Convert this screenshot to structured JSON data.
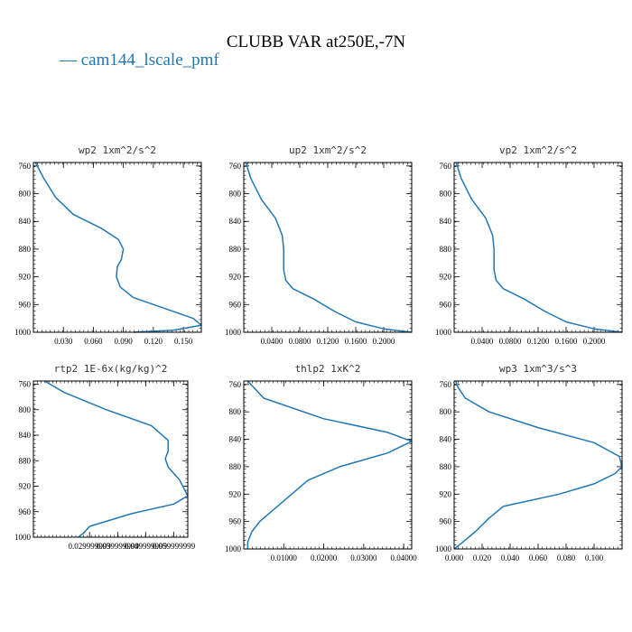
{
  "figure": {
    "title": "CLUBB VAR at250E,-7N",
    "legend": [
      {
        "label": "cam144_lscale_pmf",
        "color": "#1f77b4",
        "marker": "—"
      }
    ]
  },
  "chart_data": [
    {
      "type": "line",
      "title": "wp2   1xm^2/s^2",
      "xlim": [
        0.0,
        0.168
      ],
      "ylim": [
        1000,
        755
      ],
      "xticks": [
        0.03,
        0.06,
        0.09,
        0.12,
        0.15
      ],
      "xtick_labels": [
        "0.030",
        "0.060",
        "0.090",
        "0.120",
        "0.150"
      ],
      "yticks": [
        760,
        800,
        840,
        880,
        920,
        960,
        1000
      ],
      "ytick_labels": [
        "760",
        "800",
        "840",
        "880",
        "920",
        "960",
        "1000"
      ],
      "series": [
        {
          "color": "#1f77b4",
          "x": [
            0.002,
            0.01,
            0.022,
            0.04,
            0.068,
            0.085,
            0.09,
            0.088,
            0.084,
            0.083,
            0.087,
            0.1,
            0.13,
            0.16,
            0.168,
            0.14,
            0.1
          ],
          "y": [
            755,
            777,
            805,
            830,
            850,
            866,
            880,
            895,
            905,
            920,
            935,
            950,
            965,
            980,
            990,
            997,
            1000
          ]
        }
      ]
    },
    {
      "type": "line",
      "title": "up2   1xm^2/s^2",
      "xlim": [
        0.0,
        0.24
      ],
      "ylim": [
        1000,
        755
      ],
      "xticks": [
        0.04,
        0.08,
        0.12,
        0.16,
        0.2
      ],
      "xtick_labels": [
        "0.0400",
        "0.0800",
        "0.1200",
        "0.1600",
        "0.2000"
      ],
      "yticks": [
        760,
        800,
        840,
        880,
        920,
        960,
        1000
      ],
      "ytick_labels": [
        "760",
        "800",
        "840",
        "880",
        "920",
        "960",
        "1000"
      ],
      "series": [
        {
          "color": "#1f77b4",
          "x": [
            0.003,
            0.01,
            0.025,
            0.045,
            0.055,
            0.057,
            0.057,
            0.057,
            0.06,
            0.07,
            0.1,
            0.13,
            0.16,
            0.2,
            0.24
          ],
          "y": [
            755,
            778,
            808,
            835,
            860,
            880,
            895,
            910,
            925,
            937,
            952,
            970,
            985,
            995,
            1000
          ]
        }
      ]
    },
    {
      "type": "line",
      "title": "vp2   1xm^2/s^2",
      "xlim": [
        0.0,
        0.24
      ],
      "ylim": [
        1000,
        755
      ],
      "xticks": [
        0.04,
        0.08,
        0.12,
        0.16,
        0.2
      ],
      "xtick_labels": [
        "0.0400",
        "0.0800",
        "0.1200",
        "0.1600",
        "0.2000"
      ],
      "yticks": [
        760,
        800,
        840,
        880,
        920,
        960,
        1000
      ],
      "ytick_labels": [
        "760",
        "800",
        "840",
        "880",
        "920",
        "960",
        "1000"
      ],
      "series": [
        {
          "color": "#1f77b4",
          "x": [
            0.003,
            0.01,
            0.025,
            0.045,
            0.055,
            0.057,
            0.057,
            0.057,
            0.06,
            0.07,
            0.1,
            0.13,
            0.16,
            0.2,
            0.24
          ],
          "y": [
            755,
            778,
            808,
            835,
            860,
            880,
            895,
            910,
            925,
            937,
            952,
            970,
            985,
            995,
            1000
          ]
        }
      ]
    },
    {
      "type": "line",
      "title": "rtp2   1E-6x(kg/kg)^2",
      "xlim": [
        0.01,
        0.065
      ],
      "ylim": [
        1000,
        755
      ],
      "xticks": [
        0.03,
        0.04,
        0.05,
        0.06
      ],
      "xtick_labels": [
        "0.029999999",
        "0.039999999",
        "0.049999999",
        "0.059999999"
      ],
      "yticks": [
        760,
        800,
        840,
        880,
        920,
        960,
        1000
      ],
      "ytick_labels": [
        "760",
        "800",
        "840",
        "880",
        "920",
        "960",
        "1000"
      ],
      "series": [
        {
          "color": "#1f77b4",
          "x": [
            0.014,
            0.021,
            0.036,
            0.052,
            0.058,
            0.058,
            0.057,
            0.058,
            0.062,
            0.065,
            0.06,
            0.045,
            0.03,
            0.028,
            0.026
          ],
          "y": [
            755,
            773,
            800,
            825,
            848,
            865,
            877,
            890,
            910,
            935,
            948,
            963,
            983,
            993,
            1000
          ]
        }
      ]
    },
    {
      "type": "line",
      "title": "thlp2   1xK^2",
      "xlim": [
        0.0,
        0.042
      ],
      "ylim": [
        1000,
        755
      ],
      "xticks": [
        0.01,
        0.02,
        0.03,
        0.04
      ],
      "xtick_labels": [
        "0.01000",
        "0.02000",
        "0.03000",
        "0.04000"
      ],
      "yticks": [
        760,
        800,
        840,
        880,
        920,
        960,
        1000
      ],
      "ytick_labels": [
        "760",
        "800",
        "840",
        "880",
        "920",
        "960",
        "1000"
      ],
      "series": [
        {
          "color": "#1f77b4",
          "x": [
            0.001,
            0.005,
            0.02,
            0.036,
            0.042,
            0.036,
            0.024,
            0.016,
            0.012,
            0.008,
            0.004,
            0.002,
            0.001,
            0.001
          ],
          "y": [
            755,
            780,
            810,
            830,
            843,
            860,
            880,
            900,
            920,
            940,
            960,
            975,
            990,
            1000
          ]
        }
      ]
    },
    {
      "type": "line",
      "title": "wp3   1xm^3/s^3",
      "xlim": [
        0.0,
        0.12
      ],
      "ylim": [
        1000,
        755
      ],
      "xticks": [
        0.0,
        0.02,
        0.04,
        0.06,
        0.08,
        0.1
      ],
      "xtick_labels": [
        "0.000",
        "0.020",
        "0.040",
        "0.060",
        "0.080",
        "0.100"
      ],
      "yticks": [
        760,
        800,
        840,
        880,
        920,
        960,
        1000
      ],
      "ytick_labels": [
        "760",
        "800",
        "840",
        "880",
        "920",
        "960",
        "1000"
      ],
      "series": [
        {
          "color": "#1f77b4",
          "x": [
            0.001,
            0.003,
            0.008,
            0.025,
            0.06,
            0.1,
            0.118,
            0.12,
            0.115,
            0.1,
            0.075,
            0.035,
            0.025,
            0.015,
            0.005,
            0.0
          ],
          "y": [
            755,
            765,
            780,
            800,
            823,
            845,
            865,
            880,
            890,
            905,
            920,
            938,
            955,
            975,
            992,
            1000
          ]
        }
      ]
    }
  ]
}
